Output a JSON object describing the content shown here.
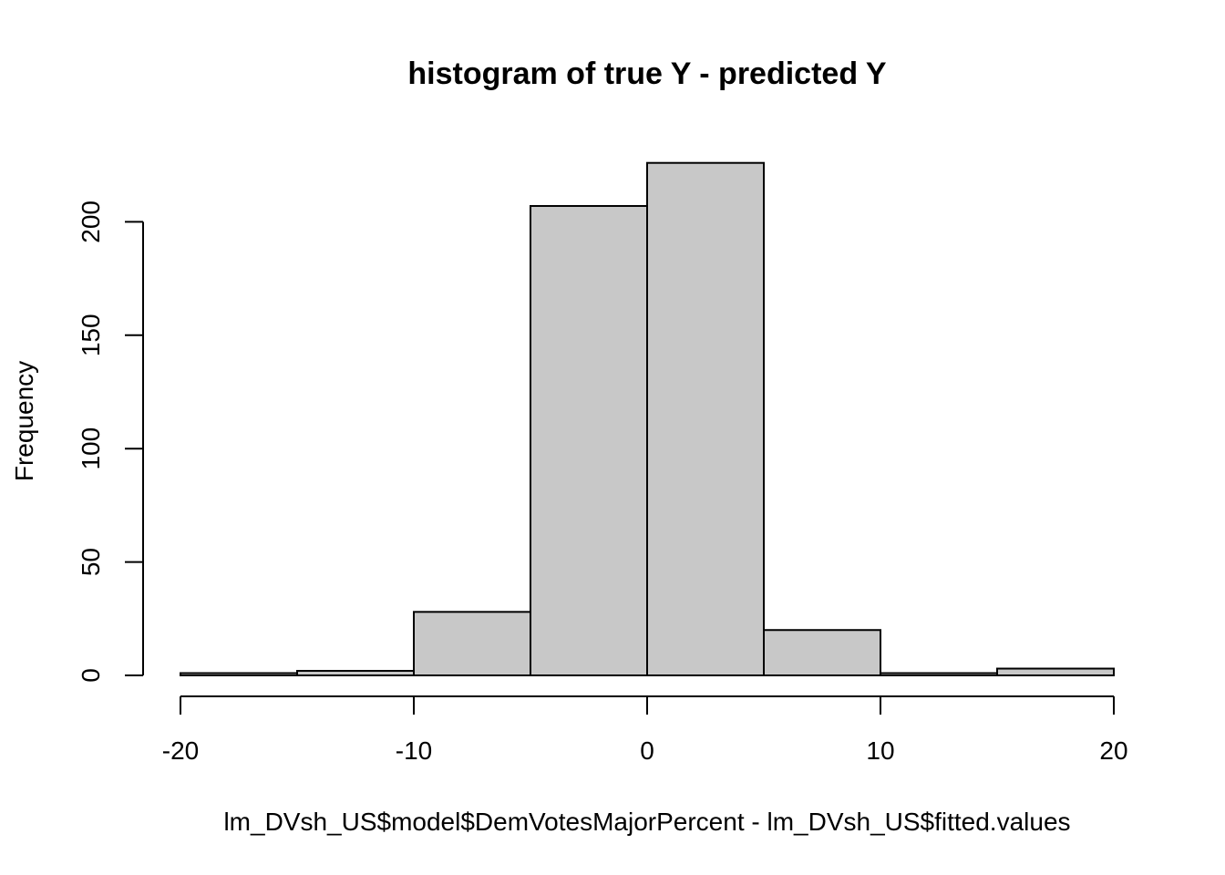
{
  "chart_data": {
    "type": "bar",
    "title": "histogram of true Y - predicted Y",
    "xlabel": "lm_DVsh_US$model$DemVotesMajorPercent - lm_DVsh_US$fitted.values",
    "ylabel": "Frequency",
    "bins": [
      {
        "x0": -20,
        "x1": -15,
        "count": 1
      },
      {
        "x0": -15,
        "x1": -10,
        "count": 2
      },
      {
        "x0": -10,
        "x1": -5,
        "count": 28
      },
      {
        "x0": -5,
        "x1": 0,
        "count": 207
      },
      {
        "x0": 0,
        "x1": 5,
        "count": 226
      },
      {
        "x0": 5,
        "x1": 10,
        "count": 20
      },
      {
        "x0": 10,
        "x1": 15,
        "count": 1
      },
      {
        "x0": 15,
        "x1": 20,
        "count": 3
      }
    ],
    "xlim": [
      -20,
      20
    ],
    "ylim": [
      0,
      226
    ],
    "x_ticks": [
      "-20",
      "-10",
      "0",
      "10",
      "20"
    ],
    "y_ticks": [
      "0",
      "50",
      "100",
      "150",
      "200"
    ],
    "bar_color": "#c8c8c8",
    "grid": false
  }
}
